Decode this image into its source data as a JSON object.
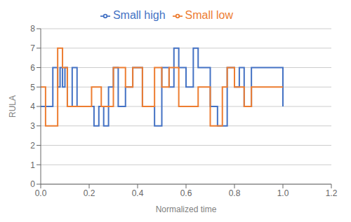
{
  "chart_data": {
    "type": "step",
    "xlabel": "Normalized time",
    "ylabel": "RULA",
    "series": [
      {
        "name": "Small high",
        "color": "#4472C4",
        "x": [
          0.0,
          0.05,
          0.07,
          0.08,
          0.09,
          0.1,
          0.11,
          0.13,
          0.15,
          0.17,
          0.22,
          0.24,
          0.26,
          0.28,
          0.3,
          0.32,
          0.35,
          0.38,
          0.42,
          0.47,
          0.5,
          0.53,
          0.55,
          0.57,
          0.6,
          0.63,
          0.65,
          0.7,
          0.73,
          0.77,
          0.8,
          0.82,
          0.84,
          0.87,
          1.0
        ],
        "values": [
          4,
          6,
          5,
          6,
          5,
          6,
          4,
          6,
          4,
          4,
          3,
          4,
          3,
          5,
          6,
          4,
          5,
          6,
          4,
          3,
          6,
          5,
          7,
          6,
          5,
          7,
          6,
          4,
          3,
          6,
          5,
          6,
          4,
          6,
          4
        ]
      },
      {
        "name": "Small low",
        "color": "#ED7D31",
        "x": [
          0.0,
          0.02,
          0.07,
          0.09,
          0.11,
          0.21,
          0.25,
          0.3,
          0.35,
          0.38,
          0.42,
          0.47,
          0.5,
          0.53,
          0.57,
          0.65,
          0.7,
          0.75,
          0.77,
          0.8,
          0.84,
          0.87,
          0.97,
          1.0
        ],
        "values": [
          5,
          3,
          7,
          6,
          4,
          5,
          4,
          6,
          5,
          6,
          4,
          6,
          5,
          6,
          4,
          5,
          3,
          5,
          6,
          5,
          4,
          5,
          5,
          5
        ]
      }
    ],
    "xlim": [
      0,
      1.2
    ],
    "ylim": [
      0,
      8
    ],
    "xticks": [
      {
        "value": 0,
        "label": "0.0"
      },
      0.2,
      0.4,
      0.6,
      0.8,
      {
        "value": 1,
        "label": "1.0"
      },
      1.2
    ],
    "yticks": [
      0,
      1,
      2,
      3,
      4,
      5,
      6,
      7,
      8
    ],
    "grid": true,
    "legend": "top"
  }
}
